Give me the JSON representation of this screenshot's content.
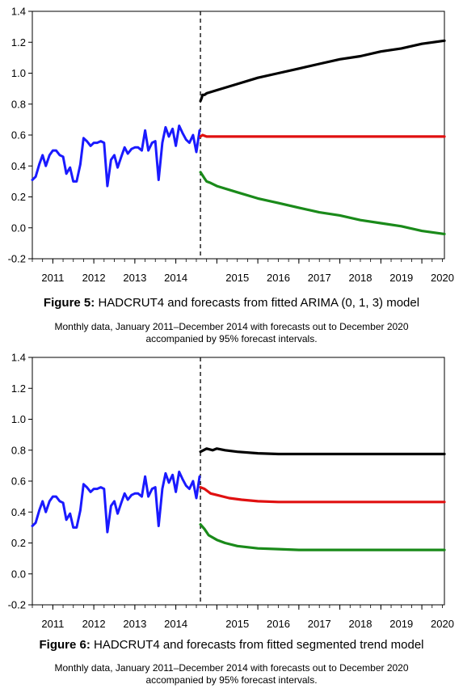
{
  "chart_data": [
    {
      "type": "line",
      "title_label": "Figure 5:",
      "title_text": "HADCRUT4 and forecasts from fitted ARIMA (0, 1, 3) model",
      "subtitle_lines": [
        "Monthly data, January 2011–December 2014 with forecasts out to December 2020",
        "accompanied by 95% forecast intervals."
      ],
      "xlim": [
        2010.5,
        2020.55
      ],
      "ylim": [
        -0.2,
        1.4
      ],
      "yticks": [
        "-0.2",
        "0.0",
        "0.2",
        "0.4",
        "0.6",
        "0.8",
        "1.0",
        "1.2",
        "1.4"
      ],
      "xtick_labels": [
        "2011",
        "2012",
        "2013",
        "2014",
        "2015",
        "2016",
        "2017",
        "2018",
        "2019",
        "2020"
      ],
      "forecast_start": 2014.95,
      "series": [
        {
          "color": "#1a1aff",
          "values": [
            [
              2010.5,
              0.31
            ],
            [
              2010.58,
              0.33
            ],
            [
              2010.67,
              0.41
            ],
            [
              2010.75,
              0.47
            ],
            [
              2010.83,
              0.4
            ],
            [
              2010.92,
              0.47
            ],
            [
              2011.0,
              0.5
            ],
            [
              2011.08,
              0.5
            ],
            [
              2011.17,
              0.47
            ],
            [
              2011.25,
              0.46
            ],
            [
              2011.33,
              0.35
            ],
            [
              2011.42,
              0.39
            ],
            [
              2011.5,
              0.3
            ],
            [
              2011.58,
              0.3
            ],
            [
              2011.67,
              0.41
            ],
            [
              2011.75,
              0.58
            ],
            [
              2011.83,
              0.56
            ],
            [
              2011.92,
              0.53
            ],
            [
              2012.0,
              0.55
            ],
            [
              2012.08,
              0.55
            ],
            [
              2012.17,
              0.56
            ],
            [
              2012.25,
              0.55
            ],
            [
              2012.33,
              0.27
            ],
            [
              2012.42,
              0.44
            ],
            [
              2012.5,
              0.47
            ],
            [
              2012.58,
              0.39
            ],
            [
              2012.67,
              0.46
            ],
            [
              2012.75,
              0.52
            ],
            [
              2012.83,
              0.48
            ],
            [
              2012.92,
              0.51
            ],
            [
              2013.0,
              0.52
            ],
            [
              2013.08,
              0.52
            ],
            [
              2013.17,
              0.5
            ],
            [
              2013.25,
              0.63
            ],
            [
              2013.33,
              0.5
            ],
            [
              2013.42,
              0.55
            ],
            [
              2013.5,
              0.56
            ],
            [
              2013.58,
              0.31
            ],
            [
              2013.67,
              0.55
            ],
            [
              2013.75,
              0.65
            ],
            [
              2013.83,
              0.59
            ],
            [
              2013.92,
              0.64
            ],
            [
              2014.0,
              0.53
            ],
            [
              2014.08,
              0.66
            ],
            [
              2014.17,
              0.61
            ],
            [
              2014.25,
              0.57
            ],
            [
              2014.33,
              0.55
            ],
            [
              2014.42,
              0.6
            ],
            [
              2014.5,
              0.49
            ],
            [
              2014.58,
              0.63
            ]
          ]
        },
        {
          "color": "#000000",
          "values": [
            [
              2014.6,
              0.82
            ],
            [
              2014.63,
              0.84
            ],
            [
              2014.65,
              0.86
            ],
            [
              2014.7,
              0.86
            ],
            [
              2014.75,
              0.87
            ],
            [
              2015.0,
              0.89
            ],
            [
              2015.5,
              0.93
            ],
            [
              2016.0,
              0.97
            ],
            [
              2016.5,
              1.0
            ],
            [
              2017.0,
              1.03
            ],
            [
              2017.5,
              1.06
            ],
            [
              2018.0,
              1.09
            ],
            [
              2018.5,
              1.11
            ],
            [
              2019.0,
              1.14
            ],
            [
              2019.5,
              1.16
            ],
            [
              2020.0,
              1.19
            ],
            [
              2020.55,
              1.21
            ]
          ]
        },
        {
          "color": "#e01010",
          "values": [
            [
              2014.6,
              0.59
            ],
            [
              2014.65,
              0.6
            ],
            [
              2014.75,
              0.59
            ],
            [
              2014.85,
              0.59
            ],
            [
              2015.0,
              0.59
            ],
            [
              2016.0,
              0.59
            ],
            [
              2017.0,
              0.59
            ],
            [
              2018.0,
              0.59
            ],
            [
              2019.0,
              0.59
            ],
            [
              2020.0,
              0.59
            ],
            [
              2020.55,
              0.59
            ]
          ]
        },
        {
          "color": "#1a8a1a",
          "values": [
            [
              2014.6,
              0.36
            ],
            [
              2014.65,
              0.34
            ],
            [
              2014.7,
              0.32
            ],
            [
              2014.75,
              0.3
            ],
            [
              2014.85,
              0.29
            ],
            [
              2015.0,
              0.27
            ],
            [
              2015.5,
              0.23
            ],
            [
              2016.0,
              0.19
            ],
            [
              2016.5,
              0.16
            ],
            [
              2017.0,
              0.13
            ],
            [
              2017.5,
              0.1
            ],
            [
              2018.0,
              0.08
            ],
            [
              2018.5,
              0.05
            ],
            [
              2019.0,
              0.03
            ],
            [
              2019.5,
              0.01
            ],
            [
              2020.0,
              -0.02
            ],
            [
              2020.55,
              -0.04
            ]
          ]
        }
      ]
    },
    {
      "type": "line",
      "title_label": "Figure 6:",
      "title_text": "HADCRUT4 and forecasts from fitted segmented trend model",
      "subtitle_lines": [
        "Monthly data, January 2011–December 2014 with forecasts out to December 2020",
        "accompanied by 95% forecast intervals."
      ],
      "xlim": [
        2010.5,
        2020.55
      ],
      "ylim": [
        -0.2,
        1.4
      ],
      "yticks": [
        "-0.2",
        "0.0",
        "0.2",
        "0.4",
        "0.6",
        "0.8",
        "1.0",
        "1.2",
        "1.4"
      ],
      "xtick_labels": [
        "2011",
        "2012",
        "2013",
        "2014",
        "2015",
        "2016",
        "2017",
        "2018",
        "2019",
        "2020"
      ],
      "forecast_start": 2014.95,
      "series": [
        {
          "color": "#1a1aff",
          "values": [
            [
              2010.5,
              0.31
            ],
            [
              2010.58,
              0.33
            ],
            [
              2010.67,
              0.41
            ],
            [
              2010.75,
              0.47
            ],
            [
              2010.83,
              0.4
            ],
            [
              2010.92,
              0.47
            ],
            [
              2011.0,
              0.5
            ],
            [
              2011.08,
              0.5
            ],
            [
              2011.17,
              0.47
            ],
            [
              2011.25,
              0.46
            ],
            [
              2011.33,
              0.35
            ],
            [
              2011.42,
              0.39
            ],
            [
              2011.5,
              0.3
            ],
            [
              2011.58,
              0.3
            ],
            [
              2011.67,
              0.41
            ],
            [
              2011.75,
              0.58
            ],
            [
              2011.83,
              0.56
            ],
            [
              2011.92,
              0.53
            ],
            [
              2012.0,
              0.55
            ],
            [
              2012.08,
              0.55
            ],
            [
              2012.17,
              0.56
            ],
            [
              2012.25,
              0.55
            ],
            [
              2012.33,
              0.27
            ],
            [
              2012.42,
              0.44
            ],
            [
              2012.5,
              0.47
            ],
            [
              2012.58,
              0.39
            ],
            [
              2012.67,
              0.46
            ],
            [
              2012.75,
              0.52
            ],
            [
              2012.83,
              0.48
            ],
            [
              2012.92,
              0.51
            ],
            [
              2013.0,
              0.52
            ],
            [
              2013.08,
              0.52
            ],
            [
              2013.17,
              0.5
            ],
            [
              2013.25,
              0.63
            ],
            [
              2013.33,
              0.5
            ],
            [
              2013.42,
              0.55
            ],
            [
              2013.5,
              0.56
            ],
            [
              2013.58,
              0.31
            ],
            [
              2013.67,
              0.55
            ],
            [
              2013.75,
              0.65
            ],
            [
              2013.83,
              0.59
            ],
            [
              2013.92,
              0.64
            ],
            [
              2014.0,
              0.53
            ],
            [
              2014.08,
              0.66
            ],
            [
              2014.17,
              0.61
            ],
            [
              2014.25,
              0.57
            ],
            [
              2014.33,
              0.55
            ],
            [
              2014.42,
              0.6
            ],
            [
              2014.5,
              0.49
            ],
            [
              2014.58,
              0.63
            ]
          ]
        },
        {
          "color": "#000000",
          "values": [
            [
              2014.6,
              0.79
            ],
            [
              2014.75,
              0.81
            ],
            [
              2014.9,
              0.8
            ],
            [
              2015.0,
              0.81
            ],
            [
              2015.2,
              0.8
            ],
            [
              2015.5,
              0.79
            ],
            [
              2016.0,
              0.78
            ],
            [
              2016.5,
              0.775
            ],
            [
              2017.0,
              0.775
            ],
            [
              2018.0,
              0.775
            ],
            [
              2019.0,
              0.775
            ],
            [
              2020.0,
              0.775
            ],
            [
              2020.55,
              0.775
            ]
          ]
        },
        {
          "color": "#e01010",
          "values": [
            [
              2014.6,
              0.56
            ],
            [
              2014.7,
              0.55
            ],
            [
              2014.85,
              0.52
            ],
            [
              2015.0,
              0.51
            ],
            [
              2015.3,
              0.49
            ],
            [
              2015.6,
              0.48
            ],
            [
              2016.0,
              0.47
            ],
            [
              2016.5,
              0.465
            ],
            [
              2017.0,
              0.465
            ],
            [
              2018.0,
              0.465
            ],
            [
              2019.0,
              0.465
            ],
            [
              2020.0,
              0.465
            ],
            [
              2020.55,
              0.465
            ]
          ]
        },
        {
          "color": "#1a8a1a",
          "values": [
            [
              2014.6,
              0.32
            ],
            [
              2014.7,
              0.29
            ],
            [
              2014.8,
              0.25
            ],
            [
              2015.0,
              0.22
            ],
            [
              2015.2,
              0.2
            ],
            [
              2015.5,
              0.18
            ],
            [
              2016.0,
              0.165
            ],
            [
              2016.5,
              0.16
            ],
            [
              2017.0,
              0.155
            ],
            [
              2018.0,
              0.155
            ],
            [
              2019.0,
              0.155
            ],
            [
              2020.0,
              0.155
            ],
            [
              2020.55,
              0.155
            ]
          ]
        }
      ]
    }
  ]
}
